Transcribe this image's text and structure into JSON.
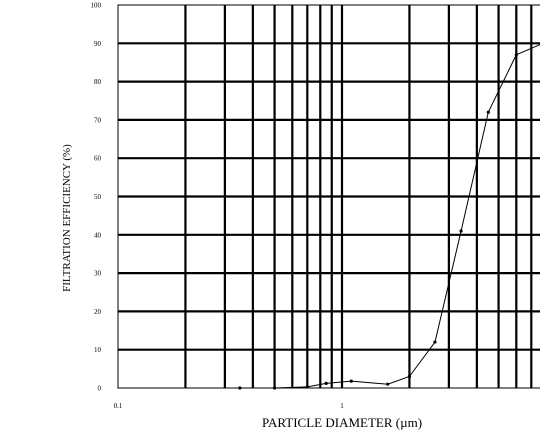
{
  "chart_data": {
    "type": "line",
    "xscale": "log",
    "xlim": [
      0.1,
      10
    ],
    "ylim": [
      0,
      100
    ],
    "xlabel": "PARTICLE DIAMETER (µm)",
    "ylabel": "FILTRATION EFFICIENCY (%)",
    "grid": true,
    "x_ticks": [
      {
        "value": 0.1,
        "label": "0.1"
      },
      {
        "value": 1,
        "label": "1"
      }
    ],
    "x_gridlines": [
      0.2,
      0.3,
      0.4,
      0.5,
      0.6,
      0.7,
      0.8,
      0.9,
      1,
      2,
      3,
      4,
      5,
      6,
      7,
      8,
      9
    ],
    "y_ticks": [
      {
        "value": 0,
        "label": "0"
      },
      {
        "value": 10,
        "label": "10"
      },
      {
        "value": 20,
        "label": "20"
      },
      {
        "value": 30,
        "label": "30"
      },
      {
        "value": 40,
        "label": "40"
      },
      {
        "value": 50,
        "label": "50"
      },
      {
        "value": 60,
        "label": "60"
      },
      {
        "value": 70,
        "label": "70"
      },
      {
        "value": 80,
        "label": "80"
      },
      {
        "value": 90,
        "label": "90"
      },
      {
        "value": 100,
        "label": "100"
      }
    ],
    "series": [
      {
        "x": [
          0.35,
          0.5,
          0.7,
          0.85,
          1.1,
          1.6,
          2.0,
          2.6,
          3.4,
          4.5,
          6.0,
          9.5
        ],
        "y": [
          0,
          0,
          0.3,
          1.2,
          1.8,
          1.0,
          3.0,
          12,
          41,
          72,
          87,
          92
        ]
      }
    ]
  }
}
